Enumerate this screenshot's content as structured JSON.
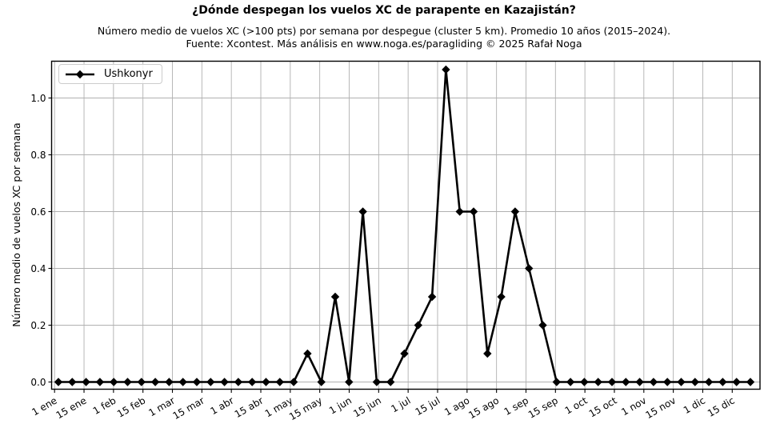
{
  "header": {
    "title": "¿Dónde despegan los vuelos XC de parapente en Kazajistán?",
    "subtitle_line1": "Número medio de vuelos XC (>100 pts) por semana por despegue (cluster 5 km). Promedio 10 años (2015–2024).",
    "subtitle_line2": "Fuente: Xcontest. Más análisis en www.noga.es/paragliding © 2025 Rafał Noga"
  },
  "legend": {
    "label": "Ushkonyr",
    "position": "upper-left",
    "marker": "diamond"
  },
  "colors": {
    "series": "#000000",
    "grid": "#b0b0b0",
    "spine": "#000000",
    "text": "#000000",
    "background": "#ffffff",
    "legend_border": "#cccccc"
  },
  "chart_data": {
    "type": "line",
    "title": "¿Dónde despegan los vuelos XC de parapente en Kazajistán?",
    "xlabel": "",
    "ylabel": "Número medio de vuelos XC por semana",
    "grid": true,
    "legend_position": "upper-left",
    "marker": "diamond",
    "ylim": [
      -0.02,
      1.13
    ],
    "y_ticks": [
      0.0,
      0.2,
      0.4,
      0.6,
      0.8,
      1.0
    ],
    "x_tick_labels": [
      "1 ene",
      "15 ene",
      "1 feb",
      "15 feb",
      "1 mar",
      "15 mar",
      "1 abr",
      "15 abr",
      "1 may",
      "15 may",
      "1 jun",
      "15 jun",
      "1 jul",
      "15 jul",
      "1 ago",
      "15 ago",
      "1 sep",
      "15 sep",
      "1 oct",
      "15 oct",
      "1 nov",
      "15 nov",
      "1 dic",
      "15 dic"
    ],
    "x_unit": "week of year (weekly data points)",
    "series": [
      {
        "name": "Ushkonyr",
        "color": "#000000",
        "values": [
          0,
          0,
          0,
          0,
          0,
          0,
          0,
          0,
          0,
          0,
          0,
          0,
          0,
          0,
          0,
          0,
          0,
          0,
          0.1,
          0,
          0.3,
          0,
          0.6,
          0,
          0,
          0.1,
          0.2,
          0.3,
          1.1,
          0.6,
          0.6,
          0.1,
          0.3,
          0.6,
          0.4,
          0.2,
          0,
          0,
          0,
          0,
          0,
          0,
          0,
          0,
          0,
          0,
          0,
          0,
          0,
          0,
          0
        ]
      }
    ]
  }
}
